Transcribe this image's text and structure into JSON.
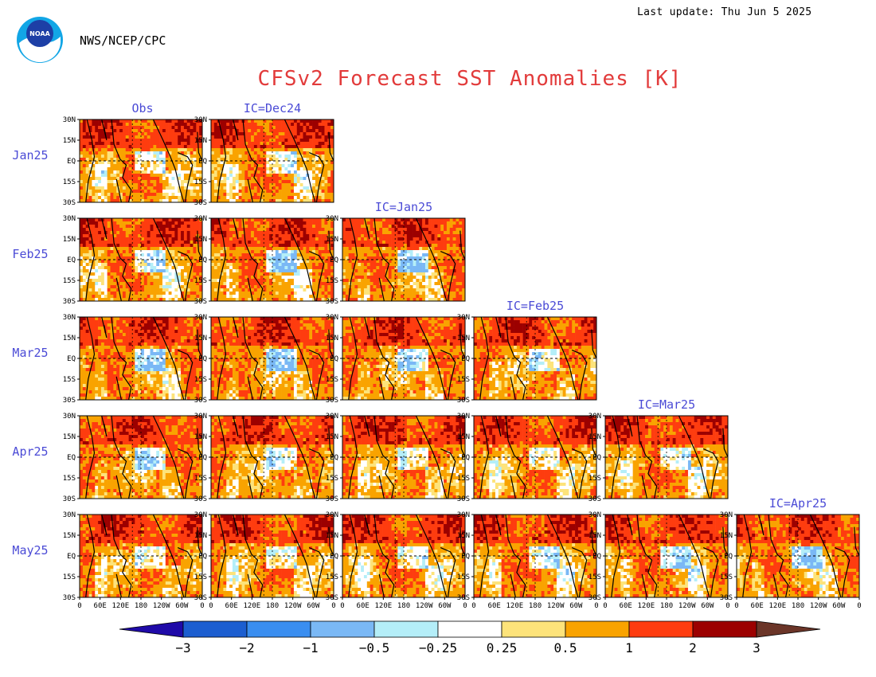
{
  "header": {
    "last_update": "Last update: Thu Jun 5 2025",
    "org": "NWS/NCEP/CPC",
    "title": "CFSv2 Forecast SST Anomalies [K]",
    "logo_text": "NOAA"
  },
  "chart_data": {
    "type": "heatmap",
    "title": "CFSv2 Forecast SST Anomalies [K]",
    "row_labels": [
      "Jan25",
      "Feb25",
      "Mar25",
      "Apr25",
      "May25"
    ],
    "column_labels": [
      "Obs",
      "IC=Dec24",
      "IC=Jan25",
      "IC=Feb25",
      "IC=Mar25",
      "IC=Apr25"
    ],
    "lat_ticks": [
      "30N",
      "15N",
      "EQ",
      "15S",
      "30S"
    ],
    "lon_ticks": [
      "0",
      "60E",
      "120E",
      "180",
      "120W",
      "60W",
      "0"
    ],
    "colorbar": {
      "ticks": [
        "−3",
        "−2",
        "−1",
        "−0.5",
        "−0.25",
        "0.25",
        "0.5",
        "1",
        "2",
        "3"
      ],
      "colors": [
        "#1f0aa8",
        "#1c5ed0",
        "#3a8ef0",
        "#7ab8f5",
        "#b4eef8",
        "#ffffff",
        "#fde37a",
        "#f9a300",
        "#fe3c0f",
        "#9c0000",
        "#6b3528"
      ]
    }
  }
}
